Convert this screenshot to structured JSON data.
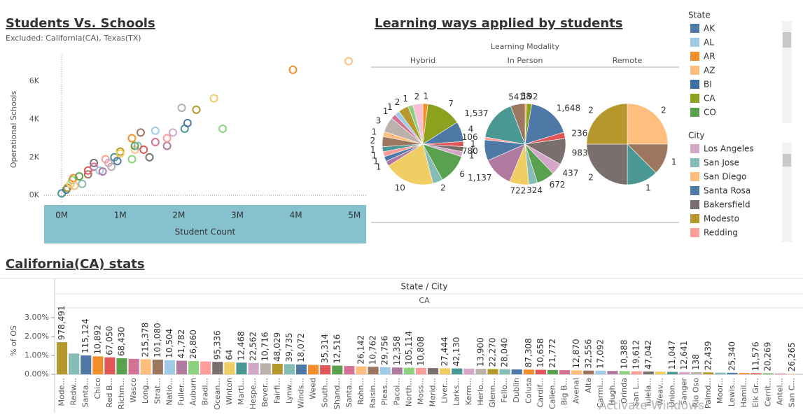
{
  "chart_data": [
    {
      "type": "scatter",
      "title": "Students Vs. Schools",
      "subtitle": "Excluded: California(CA),  Texas(TX)",
      "x_label": "Student Count",
      "y_label": "Operational Schools",
      "xlim": [
        -0.3,
        5.2
      ],
      "ylim": [
        -0.4,
        7.4
      ],
      "xticks": [
        {
          "value": 0,
          "label": "0M"
        },
        {
          "value": 1,
          "label": "1M"
        },
        {
          "value": 2,
          "label": "2M"
        },
        {
          "value": 3,
          "label": "3M"
        },
        {
          "value": 4,
          "label": "4M"
        },
        {
          "value": 5,
          "label": "5M"
        }
      ],
      "yticks": [
        {
          "value": 0,
          "label": "0K"
        },
        {
          "value": 2,
          "label": "2K"
        },
        {
          "value": 4,
          "label": "4K"
        },
        {
          "value": 6,
          "label": "6K"
        }
      ],
      "zero_lines": true,
      "x": [
        0.0,
        0.08,
        0.1,
        0.15,
        0.18,
        0.2,
        0.22,
        0.3,
        0.35,
        0.45,
        0.45,
        0.55,
        0.55,
        0.65,
        0.7,
        0.75,
        0.8,
        0.85,
        0.9,
        0.95,
        1.0,
        1.0,
        1.2,
        1.2,
        1.25,
        1.25,
        1.3,
        1.35,
        1.4,
        1.5,
        1.6,
        1.6,
        1.8,
        1.8,
        1.9,
        2.05,
        2.1,
        2.15,
        2.3,
        2.6,
        2.75,
        3.95,
        4.9
      ],
      "y": [
        0.1,
        0.3,
        0.4,
        0.6,
        0.8,
        0.9,
        0.5,
        1.0,
        0.6,
        1.1,
        1.3,
        1.7,
        1.5,
        1.3,
        1.25,
        1.9,
        1.7,
        1.5,
        2.0,
        1.8,
        2.3,
        2.2,
        1.9,
        3.0,
        2.4,
        2.6,
        2.6,
        3.3,
        2.4,
        2.0,
        2.8,
        3.4,
        2.6,
        3.0,
        3.3,
        4.6,
        3.5,
        3.8,
        4.5,
        5.1,
        3.5,
        6.6,
        7.05
      ],
      "palette": [
        "#499894",
        "#4e79a7",
        "#b6992d",
        "#f1ce63",
        "#8cd17d",
        "#f28e2b",
        "#ffbe7d",
        "#59a14f",
        "#86bcb6",
        "#9d7660",
        "#e15759",
        "#79706e",
        "#d37295",
        "#a0cbe8",
        "#b07aa1",
        "#ff9d9a",
        "#d4a6c8",
        "#bab0ac"
      ]
    },
    {
      "type": "pie",
      "title": "Learning ways applied by students",
      "header": "Learning Modality",
      "palette": [
        "#f28e2b",
        "#8ca21f",
        "#4e79a7",
        "#e15759",
        "#79706e",
        "#d4a6c8",
        "#59a14f",
        "#86bcb6",
        "#f1ce63",
        "#b07aa1",
        "#4e79a7",
        "#ff9d9a",
        "#499894",
        "#9d7660",
        "#ffbe7d",
        "#bab0ac",
        "#d37295",
        "#a0cbe8",
        "#b6992d",
        "#8cd17d",
        "#fabfd2"
      ],
      "panels": [
        {
          "name": "Hybrid",
          "values": [
            1,
            7,
            4,
            1,
            1,
            1,
            6,
            2,
            10,
            1,
            1,
            1,
            1,
            2,
            1,
            3,
            1,
            1,
            2,
            1,
            2
          ]
        },
        {
          "name": "In Person",
          "values": [
            58,
            192,
            1648,
            236,
            983,
            437,
            672,
            324,
            722,
            1137,
            780,
            106,
            1537,
            541
          ],
          "value_labels": [
            "58",
            "192",
            "1,648",
            "236",
            "983",
            "437",
            "672",
            "324",
            "722",
            "1,137",
            "780",
            "106",
            "1,537",
            "541"
          ]
        },
        {
          "name": "Remote",
          "values": [
            2,
            1,
            1,
            2,
            2
          ],
          "colors": [
            "#ffbe7d",
            "#9d7660",
            "#499894",
            "#79706e",
            "#b6992d"
          ]
        }
      ]
    },
    {
      "type": "bar",
      "title": "California(CA) stats",
      "header": "State / City",
      "column": "CA",
      "y_label": "% of OS",
      "ylim": [
        0,
        3.52
      ],
      "yticks": [
        {
          "value": 0,
          "label": "0.00%"
        },
        {
          "value": 1,
          "label": "1.00%"
        },
        {
          "value": 2,
          "label": "2.00%"
        },
        {
          "value": 3,
          "label": "3.00%"
        }
      ],
      "categories": [
        "Mode...",
        "Redw...",
        "Santa...",
        "Chico",
        "Red B...",
        "Richm...",
        "Wasco",
        "Long...",
        "Strat...",
        "Natio...",
        "Fuller...",
        "Auburn",
        "Bradl...",
        "Ocean...",
        "Winton",
        "Marti...",
        "Hespe...",
        "Bever...",
        "Fairfi...",
        "Lynw...",
        "Winds...",
        "Weed",
        "South...",
        "Shand...",
        "Santa...",
        "Rohn...",
        "Raisin...",
        "Pleas...",
        "Pacoi...",
        "North...",
        "Moss...",
        "Merid...",
        "Liver...",
        "Larks...",
        "Kerm...",
        "Herlo...",
        "Glenn...",
        "Fello...",
        "Dublin",
        "Colusa",
        "Cardif...",
        "Calien...",
        "Big B...",
        "Avenal",
        "Alta",
        "Carmi...",
        "Hugh...",
        "Orinda",
        "San L...",
        "Tulela...",
        "Weav...",
        "Union...",
        "Sanger",
        "Rio Oso",
        "Palmd...",
        "Moor...",
        "Lewis...",
        "Hamil...",
        "Elk Gr...",
        "Cerrit...",
        "Antel...",
        "San C..."
      ],
      "values": [
        1.7,
        1.1,
        1.0,
        0.95,
        0.9,
        0.85,
        0.82,
        0.8,
        0.78,
        0.75,
        0.72,
        0.7,
        0.68,
        0.66,
        0.64,
        0.62,
        0.6,
        0.58,
        0.56,
        0.54,
        0.52,
        0.5,
        0.48,
        0.46,
        0.44,
        0.42,
        0.4,
        0.38,
        0.36,
        0.35,
        0.34,
        0.33,
        0.32,
        0.31,
        0.3,
        0.29,
        0.28,
        0.27,
        0.26,
        0.25,
        0.24,
        0.23,
        0.22,
        0.21,
        0.2,
        0.19,
        0.18,
        0.17,
        0.16,
        0.15,
        0.14,
        0.13,
        0.12,
        0.11,
        0.1,
        0.09,
        0.08,
        0.07,
        0.06,
        0.05,
        0.04,
        0.03
      ],
      "count_labels": [
        "978,491",
        null,
        "115,124",
        "10,892",
        "67,050",
        "68,430",
        null,
        "215,378",
        "101,080",
        "10,504",
        "41,782",
        "26,860",
        null,
        "95,336",
        "64",
        "12,468",
        "22,562",
        "10,716",
        "48,029",
        "39,735",
        "18,072",
        null,
        "35,314",
        "12,516",
        null,
        "26,142",
        "10,762",
        "29,756",
        "12,358",
        "105,114",
        "10,808",
        null,
        "27,444",
        "42,130",
        null,
        "13,900",
        "22,270",
        "28,040",
        null,
        "87,308",
        "10,658",
        "21,772",
        null,
        "12,870",
        "32,556",
        "17,092",
        null,
        "10,388",
        "19,612",
        "47,042",
        null,
        "11,047",
        "12,641",
        "138",
        "22,439",
        null,
        "25,340",
        null,
        "11,576",
        "20,269",
        null,
        "26,265"
      ],
      "palette": [
        "#b6992d",
        "#86bcb6",
        "#4e79a7",
        "#f28e2b",
        "#e15759",
        "#59a14f",
        "#d37295",
        "#ffbe7d",
        "#9d7660",
        "#a0cbe8",
        "#b07aa1",
        "#8cd17d",
        "#ff9d9a",
        "#79706e",
        "#f1ce63",
        "#499894",
        "#d4a6c8",
        "#bab0ac"
      ]
    }
  ],
  "legends": [
    {
      "title": "State",
      "items": [
        {
          "name": "AK",
          "color": "#4e79a7"
        },
        {
          "name": "AL",
          "color": "#a0cbe8"
        },
        {
          "name": "AR",
          "color": "#f28e2b"
        },
        {
          "name": "AZ",
          "color": "#ffbe7d"
        },
        {
          "name": "BI",
          "color": "#3f6ea3"
        },
        {
          "name": "CA",
          "color": "#8ca21f"
        },
        {
          "name": "CO",
          "color": "#59a14f"
        }
      ]
    },
    {
      "title": "City",
      "items": [
        {
          "name": "Los Angeles",
          "color": "#d4a6c8"
        },
        {
          "name": "San Jose",
          "color": "#86bcb6"
        },
        {
          "name": "San Diego",
          "color": "#ffbe7d"
        },
        {
          "name": "Santa Rosa",
          "color": "#4e79a7"
        },
        {
          "name": "Bakersfield",
          "color": "#79706e"
        },
        {
          "name": "Modesto",
          "color": "#b6992d"
        },
        {
          "name": "Redding",
          "color": "#ff9d9a"
        }
      ]
    }
  ],
  "watermark": "Activate Windows"
}
